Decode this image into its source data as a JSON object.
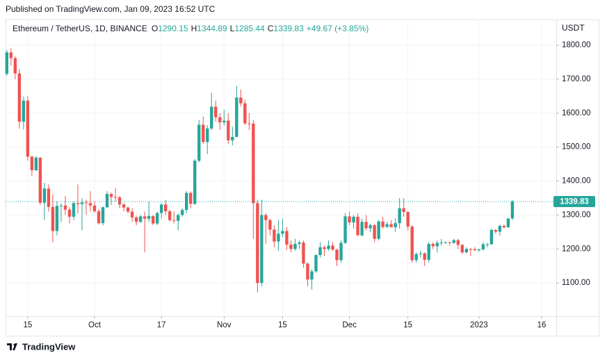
{
  "published": "Published on TradingView.com, Jan 09, 2023 16:52 UTC",
  "brand": "TradingView",
  "chart_data": {
    "type": "candlestick",
    "title": "Ethereum / TetherUS, 1D, BINANCE",
    "legend": [
      {
        "label": "O",
        "value": 1290.15
      },
      {
        "label": "H",
        "value": 1344.89
      },
      {
        "label": "L",
        "value": 1285.44
      },
      {
        "label": "C",
        "value": 1339.83
      }
    ],
    "change": "+49.67 (+3.85%)",
    "y_axis_label": "USDT",
    "last_price": {
      "value": 1339.83,
      "label": "1339.83"
    },
    "up_color": "#26a69a",
    "down_color": "#ef5350",
    "grid": true,
    "ylim": [
      1002,
      1876
    ],
    "yticks": [
      {
        "value": 1100,
        "label": "1100.00"
      },
      {
        "value": 1200,
        "label": "1200.00"
      },
      {
        "value": 1300,
        "label": "1300.00"
      },
      {
        "value": 1400,
        "label": "1400.00"
      },
      {
        "value": 1500,
        "label": "1500.00"
      },
      {
        "value": 1600,
        "label": "1600.00"
      },
      {
        "value": 1700,
        "label": "1700.00"
      },
      {
        "value": 1800,
        "label": "1800.00"
      }
    ],
    "xlim": [
      -0.3,
      131.5
    ],
    "xticks": [
      {
        "value": 5,
        "label": "15"
      },
      {
        "value": 21,
        "label": "Oct"
      },
      {
        "value": 37,
        "label": "17"
      },
      {
        "value": 52,
        "label": "Nov"
      },
      {
        "value": 66,
        "label": "15"
      },
      {
        "value": 82,
        "label": "Dec"
      },
      {
        "value": 96,
        "label": "15"
      },
      {
        "value": 113,
        "label": "2023"
      },
      {
        "value": 128,
        "label": "16"
      }
    ],
    "ohlc": [
      [
        1716,
        1786,
        1710,
        1779
      ],
      [
        1779,
        1791,
        1740,
        1762
      ],
      [
        1762,
        1768,
        1700,
        1717
      ],
      [
        1717,
        1730,
        1555,
        1575
      ],
      [
        1575,
        1648,
        1552,
        1637
      ],
      [
        1637,
        1650,
        1460,
        1472
      ],
      [
        1472,
        1475,
        1415,
        1432
      ],
      [
        1432,
        1474,
        1430,
        1469
      ],
      [
        1469,
        1470,
        1330,
        1336
      ],
      [
        1336,
        1395,
        1285,
        1378
      ],
      [
        1378,
        1390,
        1310,
        1324
      ],
      [
        1324,
        1361,
        1220,
        1253
      ],
      [
        1253,
        1340,
        1240,
        1327
      ],
      [
        1327,
        1334,
        1280,
        1328
      ],
      [
        1328,
        1356,
        1300,
        1316
      ],
      [
        1316,
        1323,
        1275,
        1295
      ],
      [
        1295,
        1340,
        1285,
        1335
      ],
      [
        1335,
        1390,
        1305,
        1332
      ],
      [
        1332,
        1350,
        1255,
        1337
      ],
      [
        1337,
        1345,
        1300,
        1335
      ],
      [
        1335,
        1370,
        1310,
        1328
      ],
      [
        1328,
        1339,
        1307,
        1311
      ],
      [
        1311,
        1318,
        1272,
        1276
      ],
      [
        1276,
        1325,
        1270,
        1323
      ],
      [
        1323,
        1370,
        1320,
        1362
      ],
      [
        1362,
        1366,
        1330,
        1353
      ],
      [
        1353,
        1380,
        1340,
        1352
      ],
      [
        1352,
        1356,
        1320,
        1331
      ],
      [
        1331,
        1336,
        1311,
        1322
      ],
      [
        1322,
        1325,
        1305,
        1310
      ],
      [
        1310,
        1320,
        1280,
        1293
      ],
      [
        1293,
        1298,
        1270,
        1280
      ],
      [
        1280,
        1300,
        1277,
        1296
      ],
      [
        1296,
        1310,
        1190,
        1289
      ],
      [
        1289,
        1340,
        1280,
        1297
      ],
      [
        1297,
        1300,
        1270,
        1275
      ],
      [
        1275,
        1310,
        1270,
        1306
      ],
      [
        1306,
        1335,
        1290,
        1331
      ],
      [
        1331,
        1345,
        1300,
        1311
      ],
      [
        1311,
        1316,
        1280,
        1285
      ],
      [
        1285,
        1311,
        1275,
        1283
      ],
      [
        1283,
        1305,
        1255,
        1300
      ],
      [
        1300,
        1320,
        1295,
        1315
      ],
      [
        1315,
        1370,
        1305,
        1365
      ],
      [
        1365,
        1370,
        1320,
        1333
      ],
      [
        1333,
        1465,
        1330,
        1460
      ],
      [
        1460,
        1580,
        1455,
        1566
      ],
      [
        1566,
        1590,
        1510,
        1515
      ],
      [
        1515,
        1565,
        1480,
        1555
      ],
      [
        1555,
        1660,
        1550,
        1619
      ],
      [
        1619,
        1637,
        1575,
        1588
      ],
      [
        1588,
        1600,
        1550,
        1573
      ],
      [
        1573,
        1610,
        1563,
        1578
      ],
      [
        1578,
        1600,
        1510,
        1520
      ],
      [
        1520,
        1560,
        1505,
        1530
      ],
      [
        1530,
        1680,
        1530,
        1646
      ],
      [
        1646,
        1670,
        1620,
        1629
      ],
      [
        1629,
        1640,
        1565,
        1570
      ],
      [
        1570,
        1600,
        1550,
        1569
      ],
      [
        1569,
        1580,
        1230,
        1335
      ],
      [
        1335,
        1345,
        1072,
        1100
      ],
      [
        1100,
        1345,
        1090,
        1300
      ],
      [
        1300,
        1305,
        1215,
        1285
      ],
      [
        1285,
        1290,
        1240,
        1257
      ],
      [
        1257,
        1270,
        1205,
        1222
      ],
      [
        1222,
        1285,
        1195,
        1245
      ],
      [
        1245,
        1290,
        1235,
        1253
      ],
      [
        1253,
        1265,
        1197,
        1213
      ],
      [
        1213,
        1225,
        1190,
        1200
      ],
      [
        1200,
        1230,
        1195,
        1215
      ],
      [
        1215,
        1225,
        1200,
        1219
      ],
      [
        1219,
        1225,
        1145,
        1157
      ],
      [
        1157,
        1160,
        1090,
        1110
      ],
      [
        1110,
        1140,
        1080,
        1134
      ],
      [
        1134,
        1185,
        1130,
        1182
      ],
      [
        1182,
        1220,
        1175,
        1205
      ],
      [
        1205,
        1210,
        1180,
        1200
      ],
      [
        1200,
        1225,
        1195,
        1210
      ],
      [
        1210,
        1220,
        1195,
        1198
      ],
      [
        1198,
        1200,
        1150,
        1167
      ],
      [
        1167,
        1225,
        1160,
        1218
      ],
      [
        1218,
        1305,
        1215,
        1296
      ],
      [
        1296,
        1310,
        1270,
        1278
      ],
      [
        1278,
        1300,
        1260,
        1295
      ],
      [
        1295,
        1305,
        1240,
        1240
      ],
      [
        1240,
        1290,
        1238,
        1280
      ],
      [
        1280,
        1300,
        1255,
        1261
      ],
      [
        1261,
        1275,
        1250,
        1270
      ],
      [
        1270,
        1275,
        1220,
        1230
      ],
      [
        1230,
        1285,
        1225,
        1281
      ],
      [
        1281,
        1295,
        1260,
        1265
      ],
      [
        1265,
        1280,
        1262,
        1273
      ],
      [
        1273,
        1285,
        1265,
        1264
      ],
      [
        1264,
        1290,
        1250,
        1276
      ],
      [
        1276,
        1350,
        1260,
        1320
      ],
      [
        1320,
        1350,
        1295,
        1309
      ],
      [
        1309,
        1312,
        1255,
        1266
      ],
      [
        1266,
        1270,
        1160,
        1167
      ],
      [
        1167,
        1190,
        1160,
        1185
      ],
      [
        1185,
        1195,
        1175,
        1187
      ],
      [
        1187,
        1190,
        1150,
        1168
      ],
      [
        1168,
        1220,
        1160,
        1215
      ],
      [
        1215,
        1220,
        1200,
        1208
      ],
      [
        1208,
        1225,
        1190,
        1218
      ],
      [
        1218,
        1230,
        1210,
        1219
      ],
      [
        1219,
        1222,
        1215,
        1220
      ],
      [
        1220,
        1221,
        1210,
        1218
      ],
      [
        1218,
        1230,
        1215,
        1226
      ],
      [
        1226,
        1230,
        1200,
        1212
      ],
      [
        1212,
        1215,
        1185,
        1190
      ],
      [
        1190,
        1205,
        1188,
        1200
      ],
      [
        1200,
        1202,
        1180,
        1199
      ],
      [
        1199,
        1205,
        1195,
        1196
      ],
      [
        1196,
        1200,
        1192,
        1199
      ],
      [
        1199,
        1220,
        1195,
        1214
      ],
      [
        1214,
        1218,
        1205,
        1214
      ],
      [
        1214,
        1260,
        1212,
        1256
      ],
      [
        1256,
        1258,
        1245,
        1251
      ],
      [
        1251,
        1272,
        1240,
        1268
      ],
      [
        1268,
        1272,
        1260,
        1264
      ],
      [
        1264,
        1290,
        1262,
        1290
      ],
      [
        1290.15,
        1344.89,
        1285.44,
        1339.83
      ]
    ]
  }
}
